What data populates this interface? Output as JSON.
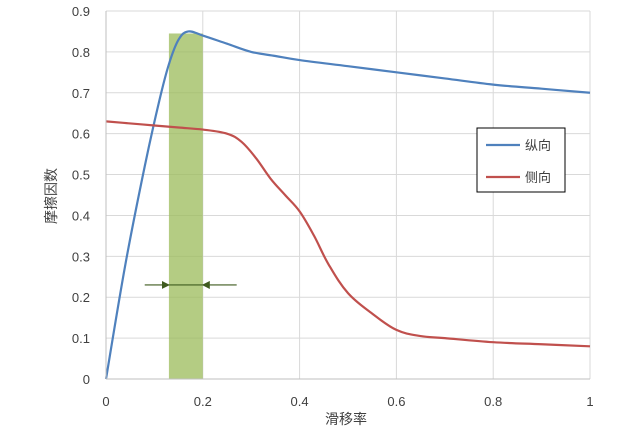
{
  "chart_data": {
    "type": "line",
    "xlabel": "滑移率",
    "ylabel": "摩擦因数",
    "xlim": [
      0,
      1
    ],
    "ylim": [
      0,
      0.9
    ],
    "x_ticks": [
      "0",
      "0.2",
      "0.4",
      "0.6",
      "0.8",
      "1"
    ],
    "y_ticks": [
      "0",
      "0.1",
      "0.2",
      "0.3",
      "0.4",
      "0.5",
      "0.6",
      "0.7",
      "0.8",
      "0.9"
    ],
    "grid": true,
    "legend_position": "right",
    "series": [
      {
        "name": "纵向",
        "color": "#4F81BD",
        "points": [
          [
            0,
            0
          ],
          [
            0.04,
            0.28
          ],
          [
            0.08,
            0.52
          ],
          [
            0.11,
            0.68
          ],
          [
            0.13,
            0.77
          ],
          [
            0.15,
            0.83
          ],
          [
            0.17,
            0.85
          ],
          [
            0.2,
            0.84
          ],
          [
            0.25,
            0.82
          ],
          [
            0.3,
            0.8
          ],
          [
            0.35,
            0.79
          ],
          [
            0.4,
            0.78
          ],
          [
            0.5,
            0.765
          ],
          [
            0.6,
            0.75
          ],
          [
            0.7,
            0.735
          ],
          [
            0.8,
            0.72
          ],
          [
            0.9,
            0.71
          ],
          [
            1,
            0.7
          ]
        ]
      },
      {
        "name": "侧向",
        "color": "#C0504D",
        "points": [
          [
            0,
            0.63
          ],
          [
            0.05,
            0.625
          ],
          [
            0.1,
            0.62
          ],
          [
            0.15,
            0.615
          ],
          [
            0.2,
            0.61
          ],
          [
            0.25,
            0.6
          ],
          [
            0.28,
            0.58
          ],
          [
            0.31,
            0.54
          ],
          [
            0.34,
            0.49
          ],
          [
            0.37,
            0.45
          ],
          [
            0.4,
            0.41
          ],
          [
            0.43,
            0.35
          ],
          [
            0.46,
            0.28
          ],
          [
            0.5,
            0.21
          ],
          [
            0.55,
            0.16
          ],
          [
            0.6,
            0.12
          ],
          [
            0.65,
            0.105
          ],
          [
            0.7,
            0.1
          ],
          [
            0.8,
            0.09
          ],
          [
            0.9,
            0.085
          ],
          [
            1,
            0.08
          ]
        ]
      }
    ],
    "highlight_band": {
      "x_range": [
        0.13,
        0.2
      ],
      "y_top": 0.845,
      "color": "#9BBB59"
    },
    "range_arrows": {
      "y": 0.23,
      "left_x": 0.08,
      "right_x": 0.27,
      "color": "#3F5B1F"
    }
  }
}
